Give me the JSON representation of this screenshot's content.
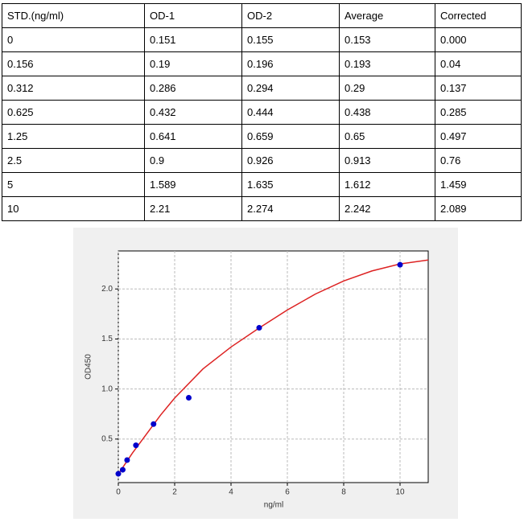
{
  "table": {
    "header": [
      "STD.(ng/ml)",
      "OD-1",
      "OD-2",
      "Average",
      "Corrected"
    ],
    "rows": [
      [
        "0",
        "0.151",
        "0.155",
        "0.153",
        "0.000"
      ],
      [
        "0.156",
        "0.19",
        "0.196",
        "0.193",
        "0.04"
      ],
      [
        "0.312",
        "0.286",
        "0.294",
        "0.29",
        "0.137"
      ],
      [
        "0.625",
        "0.432",
        "0.444",
        "0.438",
        "0.285"
      ],
      [
        "1.25",
        "0.641",
        "0.659",
        "0.65",
        "0.497"
      ],
      [
        "2.5",
        "0.9",
        "0.926",
        "0.913",
        "0.76"
      ],
      [
        "5",
        "1.589",
        "1.635",
        "1.612",
        "1.459"
      ],
      [
        "10",
        "2.21",
        "2.274",
        "2.242",
        "2.089"
      ]
    ]
  },
  "chart_data": {
    "type": "scatter",
    "x_label": "ng/ml",
    "y_label": "OD450",
    "xlim": [
      0,
      11
    ],
    "xticks": [
      0,
      2,
      4,
      6,
      8,
      10
    ],
    "ylim": [
      0.065,
      2.38
    ],
    "yticks": [
      0.5,
      {
        "value": 1,
        "label": "1.0"
      },
      1.5,
      {
        "value": 2,
        "label": "2.0"
      }
    ],
    "grid": true,
    "points": {
      "color": "#0000cc",
      "x": [
        0,
        0.156,
        0.312,
        0.625,
        1.25,
        2.5,
        5,
        10
      ],
      "values": [
        0.153,
        0.193,
        0.29,
        0.438,
        0.65,
        0.913,
        1.612,
        2.242
      ]
    },
    "curve": {
      "color": "#dd2222",
      "x": [
        0,
        0.5,
        1,
        1.5,
        2,
        3,
        4,
        5,
        6,
        7,
        8,
        9,
        10,
        11
      ],
      "values": [
        0.15,
        0.36,
        0.55,
        0.74,
        0.91,
        1.2,
        1.42,
        1.61,
        1.79,
        1.95,
        2.08,
        2.18,
        2.25,
        2.29
      ]
    }
  }
}
